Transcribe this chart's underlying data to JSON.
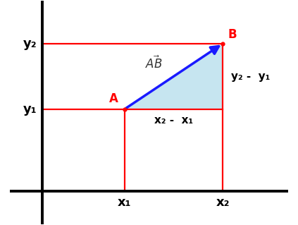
{
  "A": [
    2.5,
    2.5
  ],
  "B": [
    5.5,
    4.5
  ],
  "x1_label": "x₁",
  "x2_label": "x₂",
  "y1_label": "y₁",
  "y2_label": "y₂",
  "dx_label": "x₂ -  x₁",
  "dy_label": "y₂ -  y₁",
  "A_label": "A",
  "B_label": "B",
  "vec_label": "$\\vec{AB}$",
  "red_color": "#ff0000",
  "blue_color": "#1a1aff",
  "triangle_fill": "#a8d8e8",
  "xlim": [
    -1.0,
    7.5
  ],
  "ylim": [
    -1.0,
    5.8
  ],
  "figsize": [
    4.23,
    3.19
  ],
  "dpi": 100
}
